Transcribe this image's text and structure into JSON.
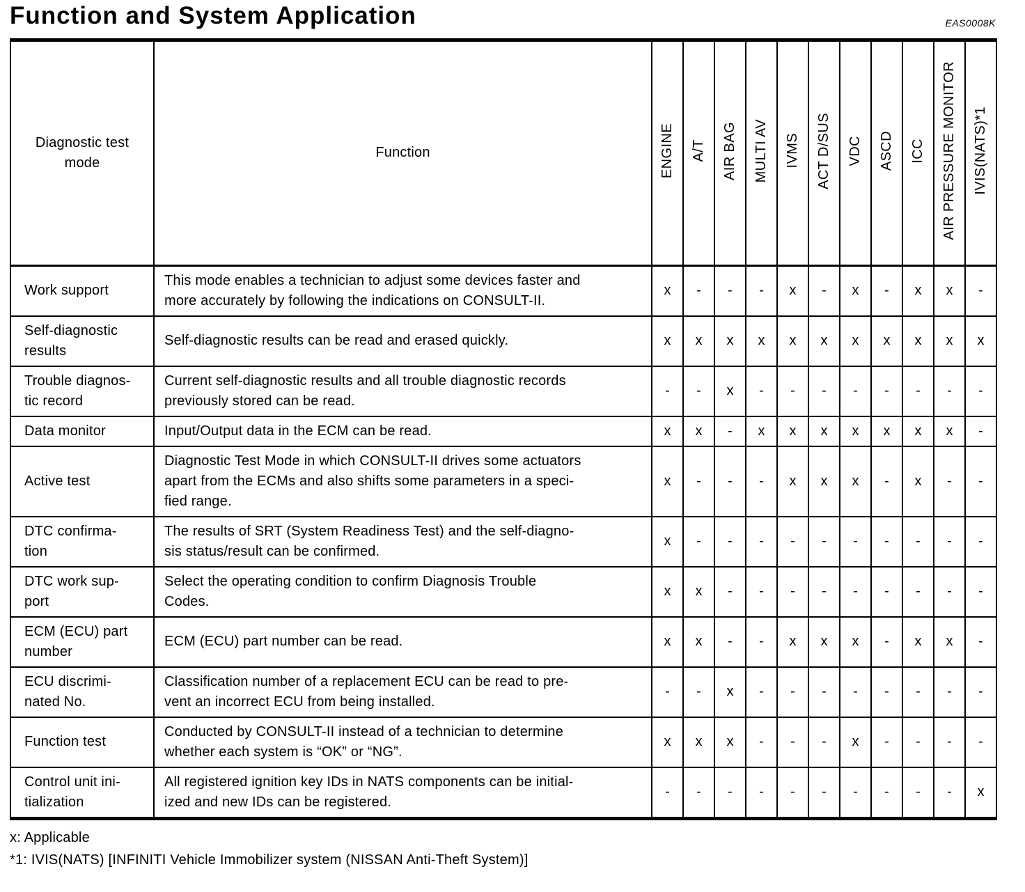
{
  "page": {
    "title": "Function and System Application",
    "doc_code": "EAS0008K",
    "footnotes": [
      "x: Applicable",
      "*1: IVIS(NATS) [INFINITI Vehicle Immobilizer system (NISSAN Anti-Theft System)]"
    ]
  },
  "table": {
    "mode_header": "Diagnostic test\nmode",
    "function_header": "Function",
    "system_columns": [
      "ENGINE",
      "A/T",
      "AIR BAG",
      "MULTI AV",
      "IVMS",
      "ACT D/SUS",
      "VDC",
      "ASCD",
      "ICC",
      "AIR PRESSURE MONITOR",
      "IVIS(NATS)*1"
    ],
    "rows": [
      {
        "mode": "Work support",
        "function": "This mode enables a technician to adjust some devices faster and\nmore accurately by following the indications on CONSULT-II.",
        "marks": [
          "x",
          "-",
          "-",
          "-",
          "x",
          "-",
          "x",
          "-",
          "x",
          "x",
          "-"
        ]
      },
      {
        "mode": "Self-diagnostic\nresults",
        "function": "Self-diagnostic results can be read and erased quickly.",
        "marks": [
          "x",
          "x",
          "x",
          "x",
          "x",
          "x",
          "x",
          "x",
          "x",
          "x",
          "x"
        ]
      },
      {
        "mode": "Trouble diagnos-\ntic record",
        "function": "Current self-diagnostic results and all trouble diagnostic records\npreviously stored can be read.",
        "marks": [
          "-",
          "-",
          "x",
          "-",
          "-",
          "-",
          "-",
          "-",
          "-",
          "-",
          "-"
        ]
      },
      {
        "mode": "Data monitor",
        "function": "Input/Output data in the ECM can be read.",
        "marks": [
          "x",
          "x",
          "-",
          "x",
          "x",
          "x",
          "x",
          "x",
          "x",
          "x",
          "-"
        ]
      },
      {
        "mode": "Active test",
        "function": "Diagnostic Test Mode in which CONSULT-II drives some actuators\napart from the ECMs and also shifts some parameters in a speci-\nfied range.",
        "marks": [
          "x",
          "-",
          "-",
          "-",
          "x",
          "x",
          "x",
          "-",
          "x",
          "-",
          "-"
        ]
      },
      {
        "mode": "DTC confirma-\ntion",
        "function": "The results of SRT (System Readiness Test) and the self-diagno-\nsis status/result can be confirmed.",
        "marks": [
          "x",
          "-",
          "-",
          "-",
          "-",
          "-",
          "-",
          "-",
          "-",
          "-",
          "-"
        ]
      },
      {
        "mode": "DTC work sup-\nport",
        "function": "Select the operating condition to confirm Diagnosis Trouble\nCodes.",
        "marks": [
          "x",
          "x",
          "-",
          "-",
          "-",
          "-",
          "-",
          "-",
          "-",
          "-",
          "-"
        ]
      },
      {
        "mode": "ECM (ECU) part\nnumber",
        "function": "ECM (ECU) part number can be read.",
        "marks": [
          "x",
          "x",
          "-",
          "-",
          "x",
          "x",
          "x",
          "-",
          "x",
          "x",
          "-"
        ]
      },
      {
        "mode": "ECU discrimi-\nnated No.",
        "function": "Classification number of a replacement ECU can be read to pre-\nvent an incorrect ECU from being installed.",
        "marks": [
          "-",
          "-",
          "x",
          "-",
          "-",
          "-",
          "-",
          "-",
          "-",
          "-",
          "-"
        ]
      },
      {
        "mode": "Function test",
        "function": "Conducted by CONSULT-II instead of a technician to determine\nwhether each system is “OK” or “NG”.",
        "marks": [
          "x",
          "x",
          "x",
          "-",
          "-",
          "-",
          "x",
          "-",
          "-",
          "-",
          "-"
        ]
      },
      {
        "mode": "Control unit ini-\ntialization",
        "function": "All registered ignition key IDs in NATS components can be initial-\nized and new IDs can be registered.",
        "marks": [
          "-",
          "-",
          "-",
          "-",
          "-",
          "-",
          "-",
          "-",
          "-",
          "-",
          "x"
        ]
      }
    ]
  }
}
